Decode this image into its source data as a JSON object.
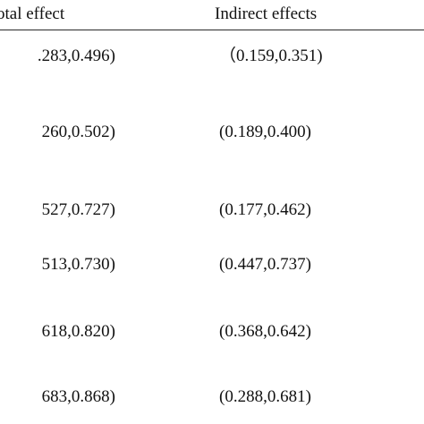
{
  "table": {
    "headers": {
      "total_effect": "otal effect",
      "indirect_effects": "Indirect effects"
    },
    "rows": [
      {
        "total_effect": ".283,0.496)",
        "indirect_effects": "（0.159,0.351)"
      },
      {
        "total_effect": "260,0.502)",
        "indirect_effects": "(0.189,0.400)"
      },
      {
        "total_effect": "527,0.727)",
        "indirect_effects": "(0.177,0.462)"
      },
      {
        "total_effect": "513,0.730)",
        "indirect_effects": "(0.447,0.737)"
      },
      {
        "total_effect": "618,0.820)",
        "indirect_effects": "(0.368,0.642)"
      },
      {
        "total_effect": "683,0.868)",
        "indirect_effects": "(0.288,0.681)"
      }
    ]
  }
}
